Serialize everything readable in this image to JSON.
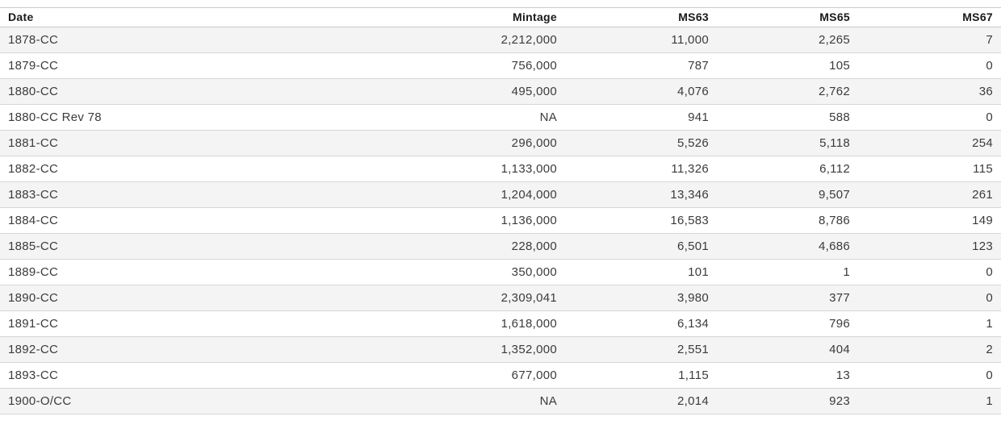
{
  "chart_data": {
    "type": "table",
    "columns": [
      "Date",
      "Mintage",
      "MS63",
      "MS65",
      "MS67"
    ],
    "rows": [
      [
        "1878-CC",
        "2,212,000",
        "11,000",
        "2,265",
        "7"
      ],
      [
        "1879-CC",
        "756,000",
        "787",
        "105",
        "0"
      ],
      [
        "1880-CC",
        "495,000",
        "4,076",
        "2,762",
        "36"
      ],
      [
        "1880-CC Rev 78",
        "NA",
        "941",
        "588",
        "0"
      ],
      [
        "1881-CC",
        "296,000",
        "5,526",
        "5,118",
        "254"
      ],
      [
        "1882-CC",
        "1,133,000",
        "11,326",
        "6,112",
        "115"
      ],
      [
        "1883-CC",
        "1,204,000",
        "13,346",
        "9,507",
        "261"
      ],
      [
        "1884-CC",
        "1,136,000",
        "16,583",
        "8,786",
        "149"
      ],
      [
        "1885-CC",
        "228,000",
        "6,501",
        "4,686",
        "123"
      ],
      [
        "1889-CC",
        "350,000",
        "101",
        "1",
        "0"
      ],
      [
        "1890-CC",
        "2,309,041",
        "3,980",
        "377",
        "0"
      ],
      [
        "1891-CC",
        "1,618,000",
        "6,134",
        "796",
        "1"
      ],
      [
        "1892-CC",
        "1,352,000",
        "2,551",
        "404",
        "2"
      ],
      [
        "1893-CC",
        "677,000",
        "1,115",
        "13",
        "0"
      ],
      [
        "1900-O/CC",
        "NA",
        "2,014",
        "923",
        "1"
      ]
    ],
    "layout": {
      "zebra_striping": true,
      "first_column_align": "left",
      "numeric_columns_align": "right"
    },
    "colors": {
      "row_alt_background": "#f4f4f4",
      "row_background": "#ffffff",
      "border": "#c9c9c9",
      "header_text": "#1a1a1a",
      "cell_text": "#3b3b3b"
    }
  }
}
